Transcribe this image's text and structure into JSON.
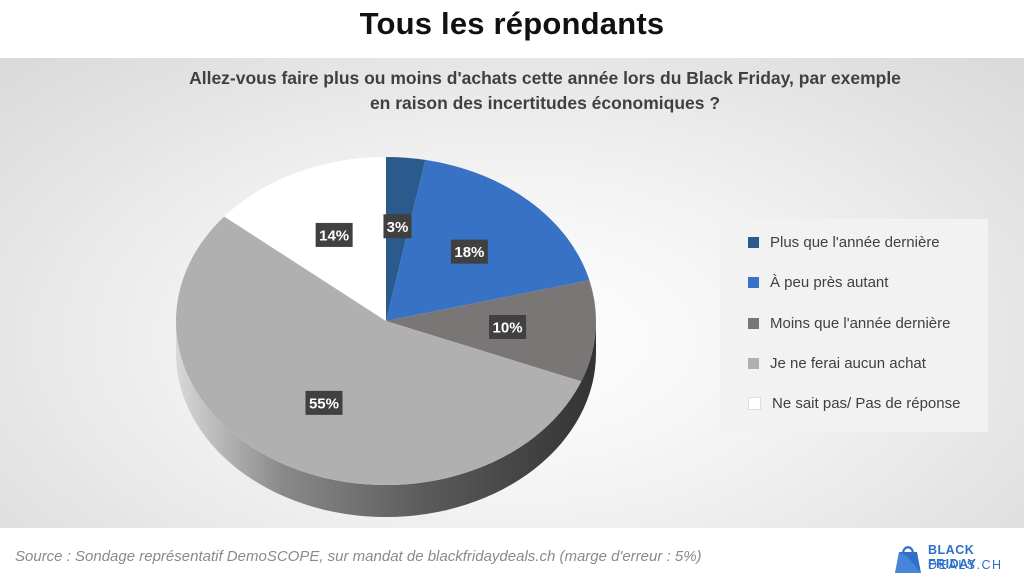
{
  "page": {
    "title": "Tous les répondants",
    "footer_source": "Source : Sondage représentatif DemoSCOPE, sur mandat de blackfridaydeals.ch (marge d'erreur : 5%)",
    "logo": {
      "line1": "BLACK FRIDAY",
      "line2": "DEALS.CH",
      "icon": "shopping-bag-icon"
    }
  },
  "chart_data": {
    "type": "pie",
    "style": "3d",
    "title": "Allez-vous faire plus ou moins d'achats cette année lors du Black Friday, par exemple en raison des incertitudes économiques ?",
    "title_lines": [
      "Allez-vous faire plus ou moins d'achats cette année lors du Black Friday, par exemple",
      "en raison des incertitudes économiques ?"
    ],
    "legend_position": "right",
    "slices": [
      {
        "label": "Plus que l'année dernière",
        "value": 3,
        "value_label": "3%",
        "color": "#2b5a8c"
      },
      {
        "label": "À peu près autant",
        "value": 18,
        "value_label": "18%",
        "color": "#3872c4"
      },
      {
        "label": "Moins que l'année dernière",
        "value": 10,
        "value_label": "10%",
        "color": "#7b7676"
      },
      {
        "label": "Je ne ferai aucun achat",
        "value": 55,
        "value_label": "55%",
        "color": "#b0b0b0"
      },
      {
        "label": "Ne sait pas/ Pas de réponse",
        "value": 14,
        "value_label": "14%",
        "color": "#ffffff"
      }
    ]
  }
}
